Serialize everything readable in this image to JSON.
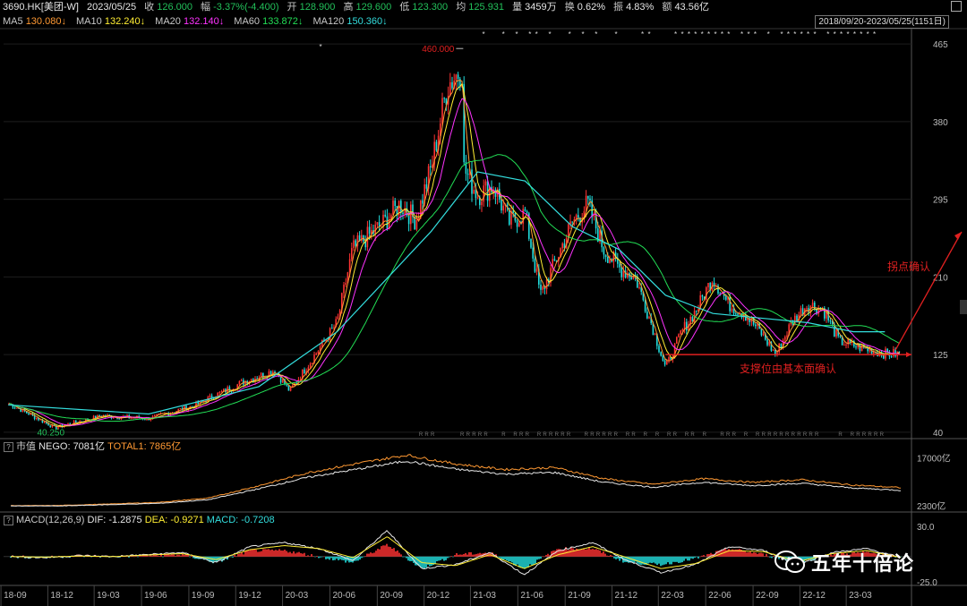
{
  "quote": {
    "symbol": "3690.HK[美团-W]",
    "date": "2023/05/25",
    "close_label": "收",
    "close": "126.000",
    "change_label": "幅",
    "change": "-3.37%(-4.400)",
    "open_label": "开",
    "open": "128.900",
    "high_label": "高",
    "high": "129.600",
    "low_label": "低",
    "low": "123.300",
    "avg_label": "均",
    "avg": "125.931",
    "volume_label": "量",
    "volume": "3459万",
    "turnover_label": "换",
    "turnover": "0.62%",
    "amplitude_label": "振",
    "amplitude": "4.83%",
    "amount_label": "额",
    "amount": "43.56亿"
  },
  "ma_legend": [
    {
      "label": "MA5",
      "value": "130.080↓",
      "color": "#ff9933"
    },
    {
      "label": "MA10",
      "value": "132.240↓",
      "color": "#ffee33"
    },
    {
      "label": "MA20",
      "value": "132.140↓",
      "color": "#ff33ff"
    },
    {
      "label": "MA60",
      "value": "133.872↓",
      "color": "#22dd55"
    },
    {
      "label": "MA120",
      "value": "150.360↓",
      "color": "#33dddd"
    }
  ],
  "range": "2018/09/20-2023/05/25(1151日)",
  "colors": {
    "up": "#ff3333",
    "down": "#22dddd",
    "ma5": "#ff9933",
    "ma10": "#ffee33",
    "ma20": "#ff33ff",
    "ma60": "#22dd55",
    "ma120": "#33dddd",
    "annotation": "#e02020"
  },
  "chart_data": [
    {
      "type": "line",
      "title": "3690.HK 美团-W 日K线",
      "x_ticks": [
        "18-09",
        "18-12",
        "19-03",
        "19-06",
        "19-09",
        "19-12",
        "20-03",
        "20-06",
        "20-09",
        "20-12",
        "21-03",
        "21-06",
        "21-09",
        "21-12",
        "22-03",
        "22-06",
        "22-09",
        "22-12",
        "23-03"
      ],
      "y_ticks": [
        465,
        380,
        295,
        210,
        125,
        40
      ],
      "ylim": [
        35,
        470
      ],
      "series": [
        {
          "name": "close",
          "x": [
            "2018-09",
            "2018-12",
            "2019-03",
            "2019-06",
            "2019-09",
            "2019-12",
            "2020-02",
            "2020-03",
            "2020-06",
            "2020-07",
            "2020-09",
            "2020-10",
            "2020-11",
            "2020-12",
            "2021-01",
            "2021-02",
            "2021-02",
            "2021-03",
            "2021-04",
            "2021-05",
            "2021-06",
            "2021-07",
            "2021-08",
            "2021-09",
            "2021-10",
            "2021-11",
            "2021-12",
            "2022-01",
            "2022-02",
            "2022-03",
            "2022-04",
            "2022-05",
            "2022-06",
            "2022-07",
            "2022-08",
            "2022-09",
            "2022-10",
            "2022-11",
            "2022-12",
            "2023-01",
            "2023-02",
            "2023-03",
            "2023-04",
            "2023-05"
          ],
          "values": [
            72,
            45,
            58,
            55,
            70,
            95,
            108,
            85,
            160,
            240,
            270,
            290,
            272,
            330,
            420,
            440,
            330,
            300,
            310,
            270,
            280,
            190,
            230,
            270,
            290,
            240,
            220,
            210,
            160,
            110,
            150,
            175,
            210,
            180,
            170,
            150,
            125,
            160,
            180,
            175,
            140,
            135,
            130,
            126
          ]
        },
        {
          "name": "MA120",
          "x": [
            "2018-09",
            "2019-06",
            "2020-01",
            "2020-06",
            "2020-12",
            "2021-03",
            "2021-06",
            "2021-09",
            "2021-12",
            "2022-03",
            "2022-06",
            "2022-09",
            "2022-12",
            "2023-03",
            "2023-05"
          ],
          "values": [
            70,
            60,
            90,
            150,
            260,
            325,
            315,
            265,
            240,
            190,
            170,
            165,
            160,
            150,
            150
          ]
        }
      ],
      "annotations": [
        {
          "text": "460.000",
          "target": 460
        },
        {
          "text": "40.250",
          "target": 40.25
        },
        {
          "text": "支撑位由基本面确认",
          "type": "support line",
          "value": 125
        },
        {
          "text": "拐点确认",
          "type": "arrow"
        }
      ]
    },
    {
      "type": "line",
      "title": "市值",
      "series_labels": [
        "NEGO: 7081亿",
        "TOTAL1: 7865亿"
      ],
      "y_ticks": [
        "17000亿",
        "2300亿"
      ],
      "series": [
        {
          "name": "NEGO",
          "values": [
            2300,
            2300,
            2700,
            3100,
            4200,
            7500,
            11000,
            13500,
            16000,
            13500,
            12000,
            12500,
            9500,
            8000,
            9500,
            8500,
            9200,
            7800,
            7081
          ]
        },
        {
          "name": "TOTAL1",
          "values": [
            2400,
            2450,
            2900,
            3400,
            4700,
            8400,
            12400,
            15200,
            17800,
            15100,
            13400,
            14000,
            10600,
            8900,
            10600,
            9500,
            10300,
            8700,
            7865
          ]
        }
      ]
    },
    {
      "type": "bar",
      "title": "MACD(12,26,9)",
      "legend": [
        "DIF: -1.2875",
        "DEA: -0.9271",
        "MACD: -0.7208"
      ],
      "y_ticks": [
        "30.0",
        "-25.0"
      ],
      "ylim": [
        -27,
        32
      ],
      "dif": [
        0,
        -1,
        1,
        0,
        2,
        4,
        -6,
        10,
        14,
        8,
        -4,
        26,
        -12,
        -8,
        4,
        -18,
        6,
        14,
        -4,
        -16,
        -8,
        10,
        6,
        -8,
        4,
        8,
        -1
      ],
      "dea": [
        0,
        -0.5,
        0.5,
        0,
        1.5,
        3,
        -3,
        7,
        11,
        8,
        -1,
        20,
        -6,
        -9,
        2,
        -12,
        2,
        10,
        -1,
        -12,
        -7,
        6,
        5,
        -5,
        3,
        6,
        -0.9
      ]
    }
  ],
  "watermark": "五年十倍论"
}
